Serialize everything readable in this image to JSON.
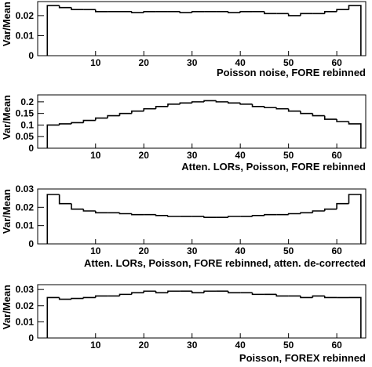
{
  "chart_data": [
    {
      "type": "histogram",
      "x_label": "Poisson noise, FORE rebinned",
      "y_label": "Var/Mean",
      "bins": [
        0,
        2.5,
        5,
        7.5,
        10,
        12.5,
        15,
        17.5,
        20,
        22.5,
        25,
        27.5,
        30,
        32.5,
        35,
        37.5,
        40,
        42.5,
        45,
        47.5,
        50,
        52.5,
        55,
        57.5,
        60,
        62.5,
        65
      ],
      "values": [
        0.025,
        0.024,
        0.023,
        0.023,
        0.022,
        0.022,
        0.022,
        0.0215,
        0.022,
        0.022,
        0.022,
        0.0215,
        0.022,
        0.022,
        0.022,
        0.0215,
        0.022,
        0.022,
        0.021,
        0.021,
        0.02,
        0.021,
        0.021,
        0.022,
        0.023,
        0.025
      ],
      "color": "#000000",
      "xlim": [
        -2,
        66
      ],
      "xticks": [
        10,
        20,
        30,
        40,
        50,
        60
      ],
      "ylim": [
        0,
        0.027
      ],
      "yticks": [
        0,
        0.01,
        0.02
      ]
    },
    {
      "type": "histogram",
      "x_label": "Atten. LORs, Poisson, FORE rebinned",
      "y_label": "Var/Mean",
      "bins": [
        0,
        2.5,
        5,
        7.5,
        10,
        12.5,
        15,
        17.5,
        20,
        22.5,
        25,
        27.5,
        30,
        32.5,
        35,
        37.5,
        40,
        42.5,
        45,
        47.5,
        50,
        52.5,
        55,
        57.5,
        60,
        62.5,
        65
      ],
      "values": [
        0.1,
        0.105,
        0.11,
        0.12,
        0.13,
        0.14,
        0.15,
        0.16,
        0.17,
        0.18,
        0.19,
        0.195,
        0.2,
        0.205,
        0.2,
        0.195,
        0.19,
        0.18,
        0.175,
        0.17,
        0.16,
        0.15,
        0.14,
        0.125,
        0.115,
        0.105
      ],
      "color": "#000000",
      "xlim": [
        -2,
        66
      ],
      "xticks": [
        10,
        20,
        30,
        40,
        50,
        60
      ],
      "ylim": [
        0,
        0.23
      ],
      "yticks": [
        0,
        0.05,
        0.1,
        0.15,
        0.2
      ]
    },
    {
      "type": "histogram",
      "x_label": "Atten. LORs, Poisson, FORE rebinned, atten. de-corrected",
      "y_label": "Var/Mean",
      "bins": [
        0,
        2.5,
        5,
        7.5,
        10,
        12.5,
        15,
        17.5,
        20,
        22.5,
        25,
        27.5,
        30,
        32.5,
        35,
        37.5,
        40,
        42.5,
        45,
        47.5,
        50,
        52.5,
        55,
        57.5,
        60,
        62.5,
        65
      ],
      "values": [
        0.027,
        0.022,
        0.019,
        0.018,
        0.017,
        0.017,
        0.0165,
        0.016,
        0.016,
        0.0155,
        0.015,
        0.015,
        0.015,
        0.0145,
        0.0145,
        0.015,
        0.015,
        0.0155,
        0.016,
        0.016,
        0.0165,
        0.017,
        0.018,
        0.019,
        0.022,
        0.027
      ],
      "color": "#000000",
      "xlim": [
        -2,
        66
      ],
      "xticks": [
        10,
        20,
        30,
        40,
        50,
        60
      ],
      "ylim": [
        0,
        0.03
      ],
      "yticks": [
        0,
        0.01,
        0.02,
        0.03
      ]
    },
    {
      "type": "histogram",
      "x_label": "Poisson, FOREX rebinned",
      "y_label": "Var/Mean",
      "bins": [
        0,
        2.5,
        5,
        7.5,
        10,
        12.5,
        15,
        17.5,
        20,
        22.5,
        25,
        27.5,
        30,
        32.5,
        35,
        37.5,
        40,
        42.5,
        45,
        47.5,
        50,
        52.5,
        55,
        57.5,
        60,
        62.5,
        65
      ],
      "values": [
        0.025,
        0.024,
        0.0245,
        0.025,
        0.026,
        0.026,
        0.027,
        0.028,
        0.029,
        0.028,
        0.029,
        0.029,
        0.028,
        0.029,
        0.029,
        0.028,
        0.028,
        0.027,
        0.027,
        0.026,
        0.026,
        0.025,
        0.026,
        0.025,
        0.025,
        0.025
      ],
      "color": "#000000",
      "xlim": [
        -2,
        66
      ],
      "xticks": [
        10,
        20,
        30,
        40,
        50,
        60
      ],
      "ylim": [
        0,
        0.033
      ],
      "yticks": [
        0,
        0.01,
        0.02,
        0.03
      ]
    }
  ]
}
